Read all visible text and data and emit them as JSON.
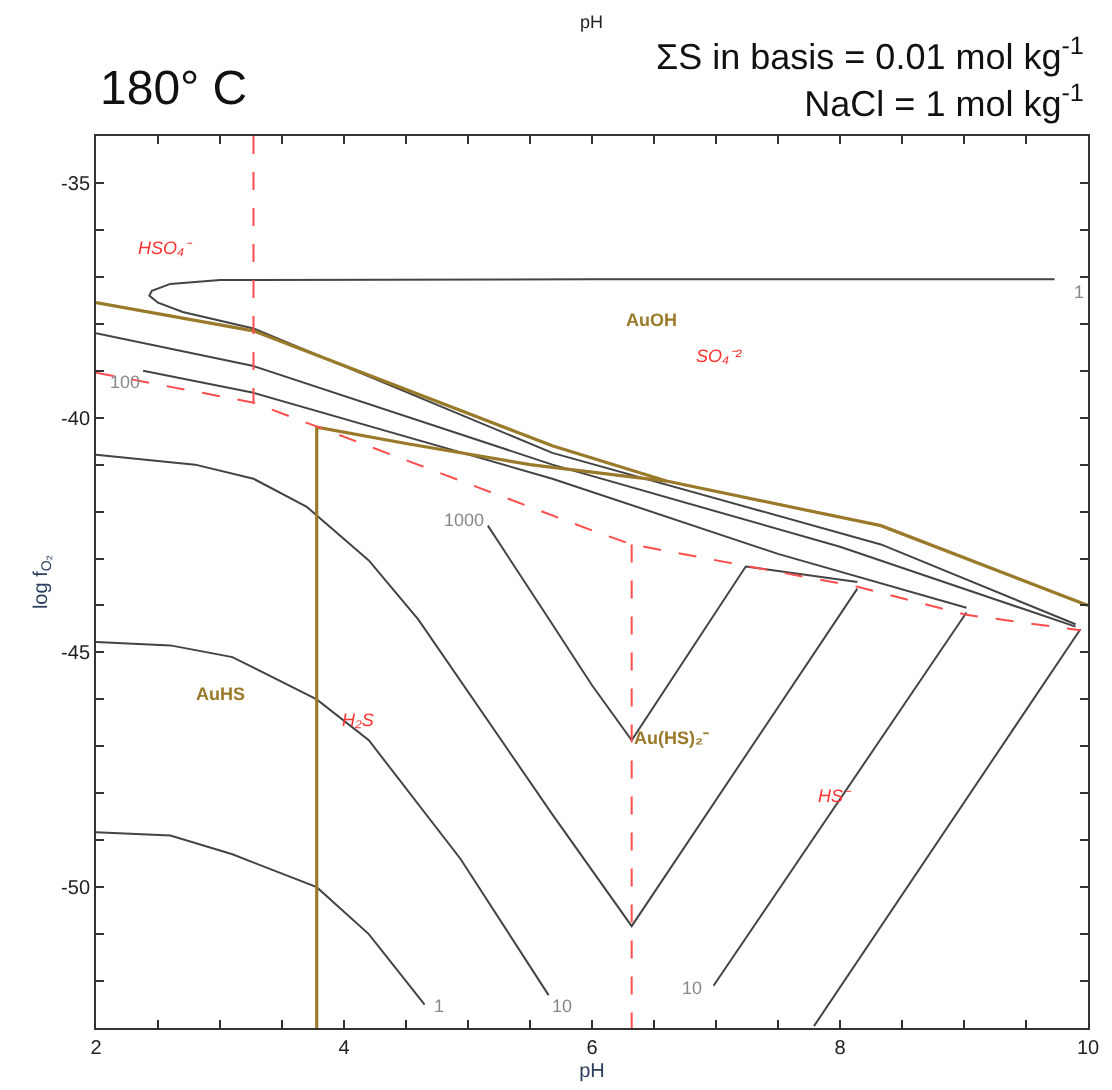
{
  "chart_data": {
    "type": "line",
    "title": "180° C",
    "subtitle": "ΣS in basis = 0.01 mol kg$^{-1}$\nNaCl = 1 mol kg$^{-1}$",
    "xlabel": "pH",
    "ylabel": "log f$_{O₂}$",
    "xlim": [
      2,
      10
    ],
    "ylim": [
      -53,
      -34
    ],
    "xticks": [
      2,
      {
        "value": 2.5,
        "label": null
      },
      {
        "value": 3,
        "label": null
      },
      {
        "value": 3.5,
        "label": null
      },
      4,
      {
        "value": 4.5,
        "label": null
      },
      {
        "value": 5,
        "label": null
      },
      {
        "value": 5.5,
        "label": null
      },
      6,
      {
        "value": 6.5,
        "label": null
      },
      {
        "value": 7,
        "label": null
      },
      {
        "value": 7.5,
        "label": null
      },
      8,
      {
        "value": 8.5,
        "label": null
      },
      {
        "value": 9,
        "label": null
      },
      {
        "value": 9.5,
        "label": null
      },
      10
    ],
    "yticks": [
      {
        "value": -52,
        "label": null
      },
      {
        "value": -51,
        "label": null
      },
      -50,
      {
        "value": -49,
        "label": null
      },
      {
        "value": -48,
        "label": null
      },
      {
        "value": -47,
        "label": null
      },
      {
        "value": -46,
        "label": null
      },
      -45,
      {
        "value": -44,
        "label": null
      },
      {
        "value": -43,
        "label": null
      },
      {
        "value": -42,
        "label": null
      },
      {
        "value": -41,
        "label": null
      },
      -40,
      {
        "value": -39,
        "label": null
      },
      {
        "value": -38,
        "label": null
      },
      {
        "value": -37,
        "label": null
      },
      {
        "value": -36,
        "label": null
      },
      -35
    ],
    "marker": "none",
    "series": [
      {
        "color": "#444444",
        "line_style": "solid",
        "x": [
          9.73,
          6.0,
          3.0,
          2.6,
          2.45,
          2.43,
          2.5,
          2.7,
          3.27,
          5.68,
          8.33,
          9.9
        ],
        "values": [
          -37.05,
          -37.05,
          -37.07,
          -37.15,
          -37.3,
          -37.4,
          -37.55,
          -37.75,
          -38.1,
          -40.75,
          -42.7,
          -44.4
        ]
      },
      {
        "type": "line",
        "color": "#444444",
        "line_style": "solid",
        "x": [
          2,
          3.27,
          5.68,
          8.0,
          9.9
        ],
        "values": [
          -38.2,
          -38.9,
          -41.0,
          -42.75,
          -44.45
        ]
      },
      {
        "type": "line",
        "color": "#444444",
        "line_style": "solid",
        "x": [
          2.38,
          3.27,
          5.68,
          7.5,
          9.02
        ],
        "values": [
          -39.0,
          -39.47,
          -41.3,
          -42.9,
          -44.05
        ]
      },
      {
        "type": "line",
        "color": "#444444",
        "line_style": "solid",
        "x": [
          5.16,
          5.68,
          6.0,
          6.32,
          7.24,
          8.14
        ],
        "values": [
          -42.3,
          -44.4,
          -45.7,
          -46.87,
          -43.17,
          -43.5
        ]
      },
      {
        "type": "line",
        "color": "#444444",
        "line_style": "solid",
        "x": [
          2,
          2.8,
          3.27,
          3.7,
          4.2,
          4.6,
          5.68,
          6.32,
          8.14
        ],
        "values": [
          -40.79,
          -41.0,
          -41.3,
          -41.9,
          -43.04,
          -44.3,
          -48.45,
          -50.83,
          -43.64
        ]
      },
      {
        "type": "line",
        "color": "#444444",
        "line_style": "solid",
        "x": [
          9.94,
          7.79
        ],
        "values": [
          -44.5,
          -52.96
        ]
      },
      {
        "type": "line",
        "color": "#444444",
        "line_style": "solid",
        "x": [
          9.02,
          6.98
        ],
        "values": [
          -44.15,
          -52.1
        ]
      },
      {
        "type": "line",
        "color": "#444444",
        "line_style": "solid",
        "x": [
          2,
          2.6,
          3.1,
          3.78,
          4.2,
          4.94,
          5.65
        ],
        "values": [
          -44.78,
          -44.85,
          -45.1,
          -46.0,
          -46.87,
          -49.4,
          -52.3
        ]
      },
      {
        "type": "line",
        "color": "#444444",
        "line_style": "solid",
        "x": [
          2,
          2.6,
          3.1,
          3.78,
          4.2,
          4.65
        ],
        "values": [
          -48.83,
          -48.9,
          -49.3,
          -50.0,
          -51.0,
          -52.5
        ]
      },
      {
        "type": "line",
        "color": "#9a7a2a",
        "line_style": "solid",
        "x": [
          2,
          3.27,
          5.68,
          6.6,
          8.33,
          10
        ],
        "values": [
          -37.55,
          -38.15,
          -40.6,
          -41.35,
          -42.3,
          -44.0
        ]
      },
      {
        "type": "line",
        "color": "#9a7a2a",
        "line_style": "solid",
        "x": [
          3.78,
          3.78,
          4.5,
          5.5,
          6.6
        ],
        "values": [
          -53,
          -40.2,
          -40.55,
          -41.0,
          -41.35
        ]
      },
      {
        "type": "line",
        "color": "#ff4d4d",
        "line_style": "dashed",
        "x": [
          2,
          3.27,
          6.0,
          6.32,
          7.27,
          8.14,
          9.02,
          9.94
        ],
        "values": [
          -39.04,
          -39.68,
          -42.4,
          -42.7,
          -43.17,
          -43.6,
          -44.2,
          -44.53
        ]
      },
      {
        "type": "line",
        "color": "#ff4d4d",
        "line_style": "dashed",
        "x": [
          3.27,
          3.27
        ],
        "values": [
          -34,
          -39.68
        ]
      },
      {
        "type": "line",
        "color": "#ff4d4d",
        "line_style": "dashed",
        "x": [
          6.32,
          6.32
        ],
        "values": [
          -42.7,
          -53
        ]
      }
    ],
    "annotations": [
      "pH",
      "1",
      "100",
      "1000",
      "1",
      "10",
      "10",
      "AuOH",
      "AuHS",
      "Au(HS)₂⁻",
      "HSO₄⁻",
      "SO₄⁻²",
      "H₂S",
      "HS⁻"
    ]
  }
}
